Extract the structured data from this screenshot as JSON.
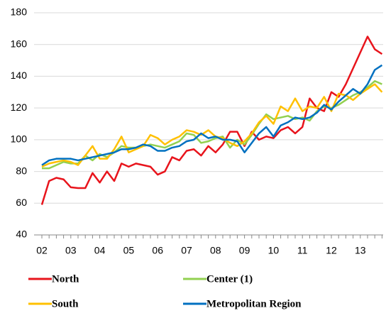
{
  "chart_data": {
    "type": "line",
    "categories": [
      "02",
      null,
      null,
      null,
      "03",
      null,
      null,
      null,
      "04",
      null,
      null,
      null,
      "05",
      null,
      null,
      null,
      "06",
      null,
      null,
      null,
      "07",
      null,
      null,
      null,
      "08",
      null,
      null,
      null,
      "09",
      null,
      null,
      null,
      "10",
      null,
      null,
      null,
      "11",
      null,
      null,
      null,
      "12",
      null,
      null,
      null,
      "13",
      null,
      null,
      null
    ],
    "series": [
      {
        "name": "North",
        "color": "#e8141c",
        "values": [
          59,
          74,
          76,
          75,
          70,
          69.5,
          69.5,
          79,
          73,
          80,
          74,
          85,
          83,
          85,
          84,
          83,
          78,
          80,
          89,
          87,
          93,
          94,
          90,
          96,
          92,
          97,
          105,
          105,
          96,
          105,
          100,
          102,
          101,
          106,
          108,
          104,
          108,
          126,
          120,
          118,
          130,
          127,
          135,
          145,
          155,
          165,
          157,
          154
        ]
      },
      {
        "name": "Center (1)",
        "color": "#92d050",
        "values": [
          82,
          82,
          84,
          86,
          85,
          85,
          90,
          87,
          91,
          89,
          92,
          96,
          95,
          95,
          96,
          97,
          96,
          95,
          97,
          99,
          104,
          103,
          98,
          99,
          101,
          102,
          95,
          100,
          97,
          103,
          110,
          116,
          113,
          114,
          115,
          113,
          114,
          112,
          118,
          121,
          120,
          122,
          125,
          128,
          130,
          133,
          137,
          135
        ]
      },
      {
        "name": "South",
        "color": "#ffc000",
        "values": [
          83,
          85,
          86,
          87,
          86,
          84,
          90,
          96,
          88,
          88,
          94,
          102,
          92,
          94,
          96,
          103,
          101,
          97,
          100,
          102,
          106,
          105,
          103,
          106,
          102,
          101,
          98,
          96,
          99,
          104,
          111,
          115,
          110,
          121,
          118,
          126,
          118,
          121,
          120,
          127,
          118,
          129,
          128,
          125,
          129,
          132,
          135,
          130
        ]
      },
      {
        "name": "Metropolitan Region",
        "color": "#0070c0",
        "values": [
          84,
          87,
          88,
          88,
          88,
          87,
          88,
          89,
          90,
          91,
          92,
          94,
          94,
          95,
          97,
          96,
          93,
          93,
          95,
          96,
          99,
          100,
          104,
          101,
          102,
          100,
          100,
          99,
          92,
          98,
          104,
          108,
          102,
          109,
          111,
          114,
          113,
          114,
          117,
          122,
          119,
          124,
          128,
          132,
          129,
          135,
          144,
          147
        ]
      }
    ],
    "ylim": [
      40,
      180
    ],
    "yticks": [
      40,
      60,
      80,
      100,
      120,
      140,
      160,
      180
    ],
    "grid": true
  }
}
